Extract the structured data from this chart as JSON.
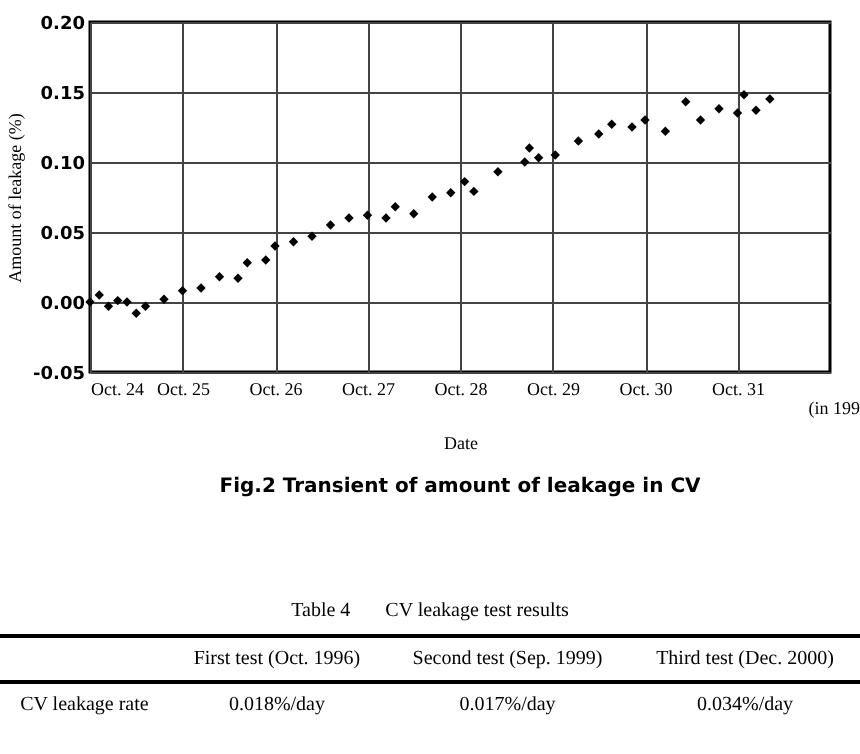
{
  "chart_data": {
    "type": "scatter",
    "title": "Fig.2    Transient of amount of leakage in CV",
    "xlabel": "Date",
    "ylabel": "Amount of leakage (%)",
    "x": [
      "--10-24T00:00",
      "--10-24T02:24",
      "--10-24T04:48",
      "--10-24T07:12",
      "--10-24T09:36",
      "--10-24T12:00",
      "--10-24T14:24",
      "--10-24T19:12",
      "--10-25T00:00",
      "--10-25T04:48",
      "--10-25T09:36",
      "--10-25T14:24",
      "--10-25T16:48",
      "--10-25T21:36",
      "--10-26T00:00",
      "--10-26T04:48",
      "--10-26T09:36",
      "--10-26T14:24",
      "--10-26T19:12",
      "--10-27T00:00",
      "--10-27T04:48",
      "--10-27T07:12",
      "--10-27T12:00",
      "--10-27T16:48",
      "--10-27T21:36",
      "--10-28T01:12",
      "--10-28T03:36",
      "--10-28T09:50",
      "--10-28T16:48",
      "--10-28T18:00",
      "--10-28T20:24",
      "--10-29T00:43",
      "--10-29T06:43",
      "--10-29T12:00",
      "--10-29T15:22",
      "--10-29T20:38",
      "--10-30T00:00",
      "--10-30T05:17",
      "--10-30T10:34",
      "--10-30T14:24",
      "--10-30T19:12",
      "--10-31T00:00",
      "--10-31T01:41",
      "--10-31T04:48",
      "--10-31T08:24"
    ],
    "values": [
      0.0,
      0.005,
      -0.003,
      0.001,
      0.0,
      -0.008,
      -0.003,
      0.002,
      0.008,
      0.01,
      0.018,
      0.017,
      0.028,
      0.03,
      0.04,
      0.043,
      0.047,
      0.055,
      0.06,
      0.062,
      0.06,
      0.068,
      0.063,
      0.075,
      0.078,
      0.086,
      0.079,
      0.093,
      0.1,
      0.11,
      0.103,
      0.105,
      0.115,
      0.12,
      0.127,
      0.125,
      0.13,
      0.122,
      0.143,
      0.13,
      0.138,
      0.135,
      0.148,
      0.137,
      0.145
    ],
    "color": "#000000",
    "marker": "diamond",
    "grid": true,
    "xlim": [
      "--10-24",
      "--11-01"
    ],
    "xticks": [
      {
        "value": "--10-24",
        "label": "Oct. 24"
      },
      {
        "value": "--10-25",
        "label": "Oct. 25"
      },
      {
        "value": "--10-26",
        "label": "Oct. 26"
      },
      {
        "value": "--10-27",
        "label": "Oct. 27"
      },
      {
        "value": "--10-28",
        "label": "Oct. 28"
      },
      {
        "value": "--10-29",
        "label": "Oct. 29"
      },
      {
        "value": "--10-30",
        "label": "Oct. 30"
      },
      {
        "value": "--10-31",
        "label": "Oct. 31"
      }
    ],
    "ylim": [
      -0.05,
      0.2
    ],
    "yticks": [
      {
        "value": -0.05,
        "label": "-0.05"
      },
      {
        "value": 0,
        "label": "0.00"
      },
      {
        "value": 0.05,
        "label": "0.05"
      },
      {
        "value": 0.1,
        "label": "0.10"
      },
      {
        "value": 0.15,
        "label": "0.15"
      },
      {
        "value": 0.2,
        "label": "0.20"
      }
    ],
    "annotations": [
      "(in 199",
      "Table 4       CV leakage test results",
      "First test (Oct. 1996)",
      "Second test (Sep. 1999)",
      "Third test (Dec. 2000)",
      "CV leakage rate",
      "0.018%/day",
      "0.017%/day",
      "0.034%/day"
    ]
  }
}
